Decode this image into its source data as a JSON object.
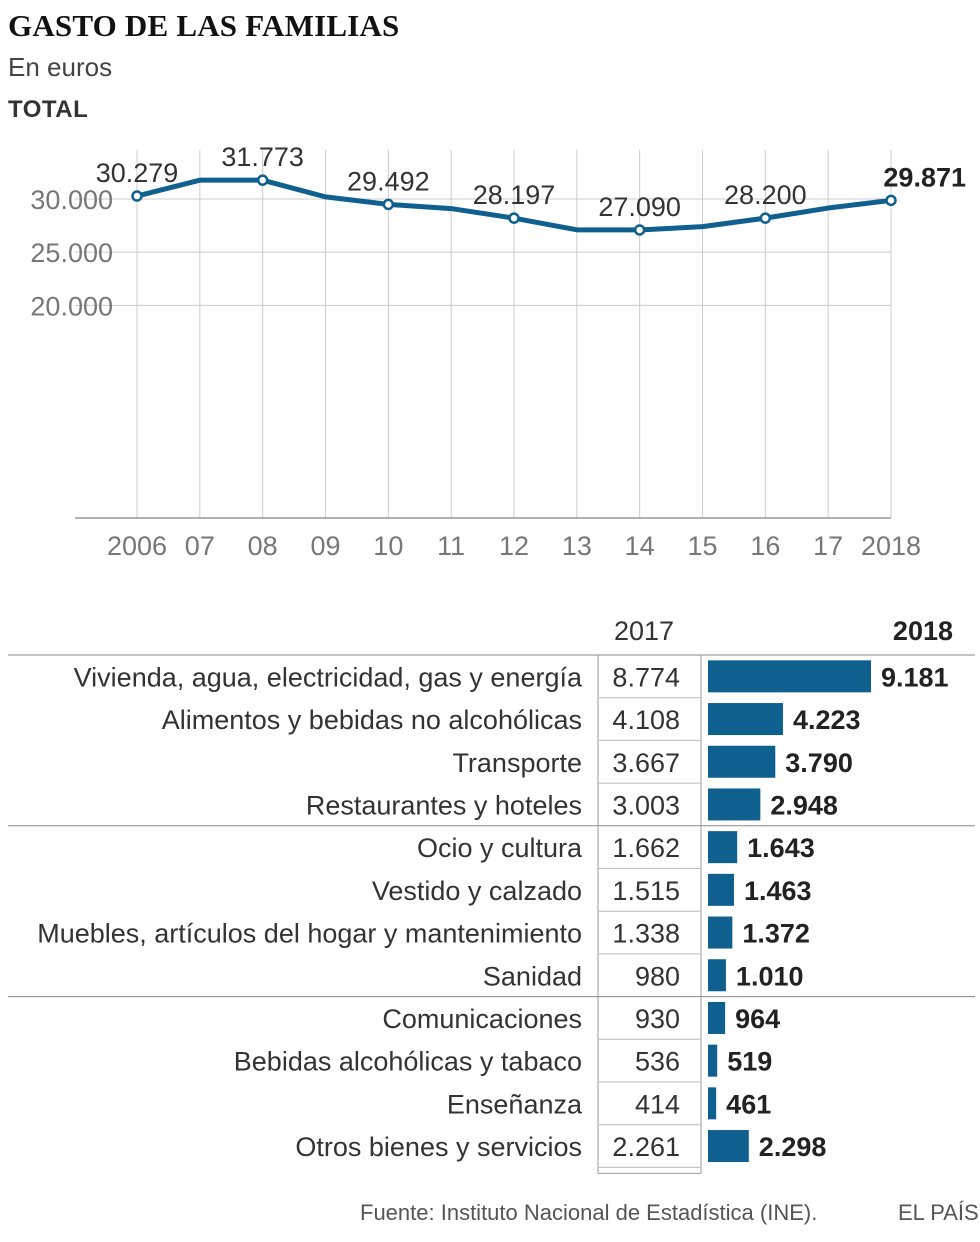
{
  "title": "GASTO DE LAS FAMILIAS",
  "subtitle": "En euros",
  "section_label": "TOTAL",
  "source": "Fuente: Instituto Nacional de Estadística (INE).",
  "brand": "EL PAÍS",
  "colors": {
    "line": "#0f5f8f",
    "bar": "#0f5f8f",
    "grid": "#cccccc",
    "text": "#333333"
  },
  "chart_data": [
    {
      "type": "line",
      "title": "TOTAL",
      "x": [
        "2006",
        "07",
        "08",
        "09",
        "10",
        "11",
        "12",
        "13",
        "14",
        "15",
        "16",
        "17",
        "2018"
      ],
      "values": [
        30279,
        31773,
        31773,
        30200,
        29492,
        29100,
        28197,
        27100,
        27090,
        27400,
        28200,
        29150,
        29871
      ],
      "labels": [
        {
          "index": 0,
          "text": "30.279"
        },
        {
          "index": 2,
          "text": "31.773"
        },
        {
          "index": 4,
          "text": "29.492"
        },
        {
          "index": 6,
          "text": "28.197"
        },
        {
          "index": 8,
          "text": "27.090"
        },
        {
          "index": 10,
          "text": "28.200"
        },
        {
          "index": 12,
          "text": "29.871",
          "bold": true
        }
      ],
      "y_ticks": [
        {
          "value": 30000,
          "label": "30.000"
        },
        {
          "value": 25000,
          "label": "25.000"
        },
        {
          "value": 20000,
          "label": "20.000"
        }
      ],
      "ylim": [
        0,
        35000
      ],
      "grid": true
    },
    {
      "type": "bar",
      "orientation": "horizontal",
      "header_2017": "2017",
      "header_2018": "2018",
      "categories": [
        "Vivienda, agua, electricidad, gas y energía",
        "Alimentos y bebidas no alcohólicas",
        "Transporte",
        "Restaurantes y hoteles",
        "Ocio y cultura",
        "Vestido y calzado",
        "Muebles, artículos del hogar y mantenimiento",
        "Sanidad",
        "Comunicaciones",
        "Bebidas alcohólicas y tabaco",
        "Enseñanza",
        "Otros bienes y servicios"
      ],
      "values_2017": [
        8774,
        4108,
        3667,
        3003,
        1662,
        1515,
        1338,
        980,
        930,
        536,
        414,
        2261
      ],
      "labels_2017": [
        "8.774",
        "4.108",
        "3.667",
        "3.003",
        "1.662",
        "1.515",
        "1.338",
        "980",
        "930",
        "536",
        "414",
        "2.261"
      ],
      "values_2018": [
        9181,
        4223,
        3790,
        2948,
        1643,
        1463,
        1372,
        1010,
        964,
        519,
        461,
        2298
      ],
      "labels_2018": [
        "9.181",
        "4.223",
        "3.790",
        "2.948",
        "1.643",
        "1.463",
        "1.372",
        "1.010",
        "964",
        "519",
        "461",
        "2.298"
      ]
    }
  ]
}
